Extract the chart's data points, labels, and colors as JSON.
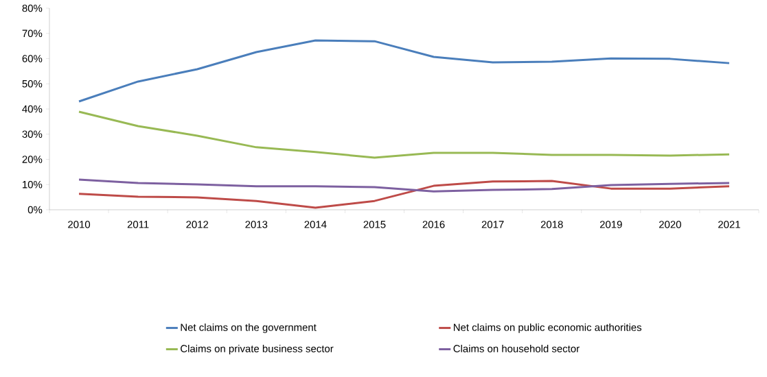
{
  "chart_data": {
    "type": "line",
    "categories": [
      "2010",
      "2011",
      "2012",
      "2013",
      "2014",
      "2015",
      "2016",
      "2017",
      "2018",
      "2019",
      "2020",
      "2021"
    ],
    "series": [
      {
        "name": "Net claims on the government",
        "color": "#4a7ebb",
        "values": [
          43.0,
          50.9,
          55.8,
          62.6,
          67.2,
          66.9,
          60.7,
          58.5,
          58.8,
          60.1,
          59.9,
          58.2
        ]
      },
      {
        "name": "Net claims on public economic authorities",
        "color": "#be4b48",
        "values": [
          6.3,
          5.2,
          4.9,
          3.5,
          0.8,
          3.5,
          9.5,
          11.2,
          11.4,
          8.4,
          8.4,
          9.3
        ]
      },
      {
        "name": "Claims on private business sector",
        "color": "#98b954",
        "values": [
          38.9,
          33.2,
          29.4,
          24.8,
          22.9,
          20.7,
          22.6,
          22.6,
          21.8,
          21.8,
          21.5,
          22.0
        ]
      },
      {
        "name": "Claims on household sector",
        "color": "#7d60a0",
        "values": [
          12.0,
          10.6,
          10.1,
          9.3,
          9.3,
          9.0,
          7.3,
          7.9,
          8.2,
          9.8,
          10.3,
          10.6
        ]
      }
    ],
    "ylim": [
      0,
      80
    ],
    "yticks": [
      {
        "value": 0,
        "label": "0%"
      },
      {
        "value": 10,
        "label": "10%"
      },
      {
        "value": 20,
        "label": "20%"
      },
      {
        "value": 30,
        "label": "30%"
      },
      {
        "value": 40,
        "label": "40%"
      },
      {
        "value": 50,
        "label": "50%"
      },
      {
        "value": 60,
        "label": "60%"
      },
      {
        "value": 70,
        "label": "70%"
      },
      {
        "value": 80,
        "label": "80%"
      }
    ],
    "grid": false,
    "legend": "bottom"
  }
}
